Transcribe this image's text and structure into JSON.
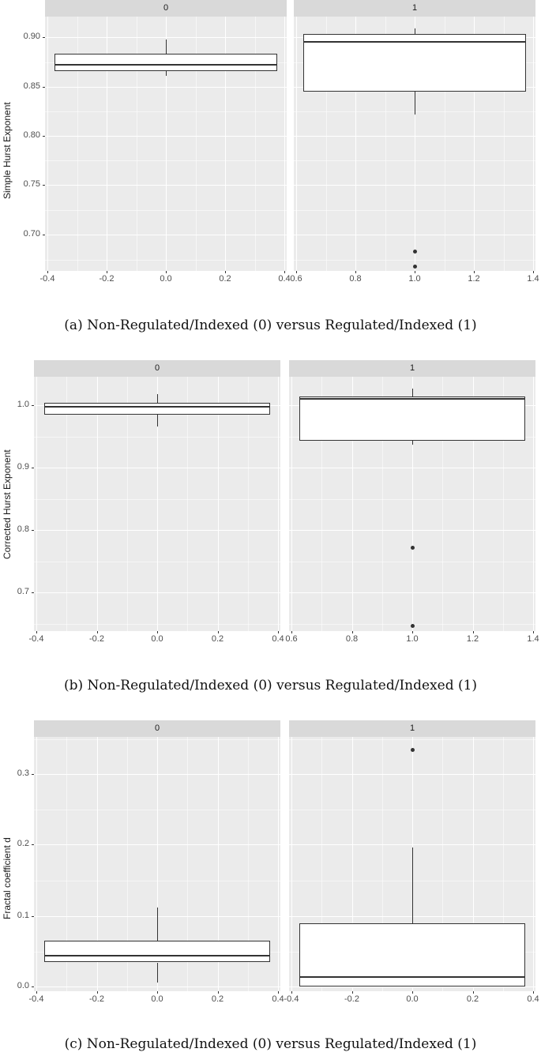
{
  "chart_data": [
    {
      "type": "boxplot",
      "title": "",
      "caption": "(a) Non-Regulated/Indexed (0) versus Regulated/Indexed (1)",
      "ylabel": "Simple Hurst Exponent",
      "xlabel": "",
      "ylim": [
        0.66,
        0.925
      ],
      "yticks": [
        "0.90",
        "0.85",
        "0.80",
        "0.75",
        "0.70"
      ],
      "facets": [
        {
          "label": "0",
          "xticks": [
            "-0.4",
            "-0.2",
            "0.0",
            "0.2",
            "0.4"
          ],
          "box": {
            "whisker_low": 0.861,
            "q1": 0.866,
            "median": 0.872,
            "q3": 0.883,
            "whisker_high": 0.898
          },
          "outliers": []
        },
        {
          "label": "1",
          "xticks": [
            "0.6",
            "0.8",
            "1.0",
            "1.2",
            "1.4"
          ],
          "box": {
            "whisker_low": 0.822,
            "q1": 0.845,
            "median": 0.895,
            "q3": 0.903,
            "whisker_high": 0.909
          },
          "outliers": [
            0.683,
            0.668
          ]
        }
      ]
    },
    {
      "type": "boxplot",
      "title": "",
      "caption": "(b) Non-Regulated/Indexed (0) versus Regulated/Indexed (1)",
      "ylabel": "Corrected Hurst Exponent",
      "xlabel": "",
      "ylim": [
        0.63,
        1.04
      ],
      "yticks": [
        "1.0",
        "0.9",
        "0.8",
        "0.7"
      ],
      "facets": [
        {
          "label": "0",
          "xticks": [
            "-0.4",
            "-0.2",
            "0.0",
            "0.2",
            "0.4"
          ],
          "box": {
            "whisker_low": 0.966,
            "q1": 0.985,
            "median": 0.997,
            "q3": 1.004,
            "whisker_high": 1.018
          },
          "outliers": []
        },
        {
          "label": "1",
          "xticks": [
            "0.6",
            "0.8",
            "1.0",
            "1.2",
            "1.4"
          ],
          "box": {
            "whisker_low": 0.937,
            "q1": 0.943,
            "median": 1.01,
            "q3": 1.014,
            "whisker_high": 1.026
          },
          "outliers": [
            0.771,
            0.646
          ]
        }
      ]
    },
    {
      "type": "boxplot",
      "title": "",
      "caption": "(c) Non-Regulated/Indexed (0) versus Regulated/Indexed (1)",
      "ylabel": "Fractal coefficient d",
      "xlabel": "",
      "ylim": [
        -0.015,
        0.35
      ],
      "yticks": [
        "0.3",
        "0.2",
        "0.1",
        "0.0"
      ],
      "facets": [
        {
          "label": "0",
          "xticks": [
            "-0.4",
            "-0.2",
            "0.0",
            "0.2",
            "0.4"
          ],
          "box": {
            "whisker_low": 0.006,
            "q1": 0.034,
            "median": 0.043,
            "q3": 0.065,
            "whisker_high": 0.111
          },
          "outliers": []
        },
        {
          "label": "1",
          "xticks": [
            "-0.4",
            "-0.2",
            "0.0",
            "0.2",
            "0.4"
          ],
          "box": {
            "whisker_low": 0.0,
            "q1": 0.0,
            "median": 0.013,
            "q3": 0.089,
            "whisker_high": 0.196
          },
          "outliers": [
            0.334
          ]
        }
      ]
    }
  ]
}
